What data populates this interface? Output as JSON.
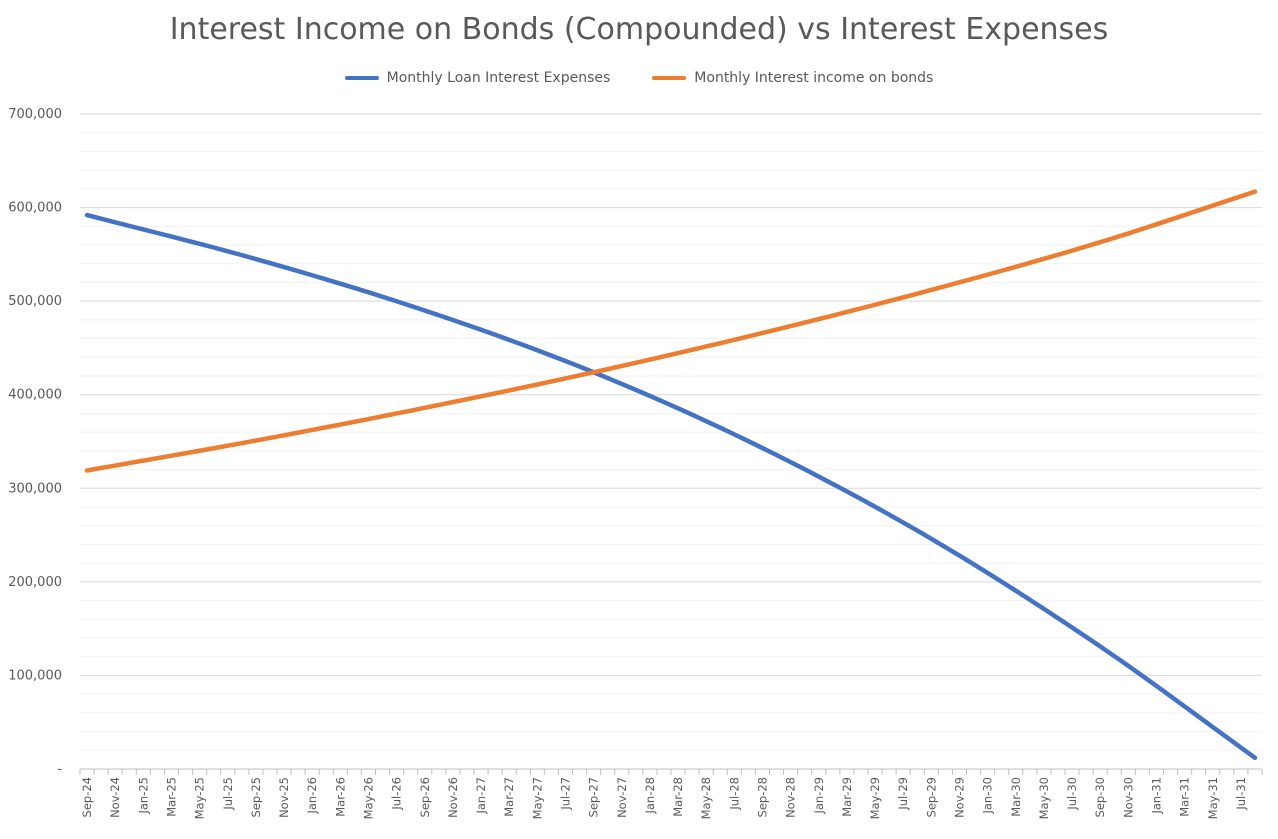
{
  "chart_data": {
    "type": "line",
    "title": "Interest Income on Bonds (Compounded) vs Interest Expenses",
    "xlabel": "",
    "ylabel": "",
    "legend_position": "top",
    "ylim": [
      0,
      700000
    ],
    "y_ticks": [
      0,
      100000,
      200000,
      300000,
      400000,
      500000,
      600000,
      700000
    ],
    "y_tick_labels": [
      "-",
      "100,000",
      "200,000",
      "300,000",
      "400,000",
      "500,000",
      "600,000",
      "700,000"
    ],
    "grid": true,
    "x_start": "2024-09",
    "x_count": 84,
    "x_tick_labels": [
      "Sep-24",
      "Nov-24",
      "Jan-25",
      "Mar-25",
      "May-25",
      "Jul-25",
      "Sep-25",
      "Nov-25",
      "Jan-26",
      "Mar-26",
      "May-26",
      "Jul-26",
      "Sep-26",
      "Nov-26",
      "Jan-27",
      "Mar-27",
      "May-27",
      "Jul-27",
      "Sep-27",
      "Nov-27",
      "Jan-28",
      "Mar-28",
      "May-28",
      "Jul-28",
      "Sep-28",
      "Nov-28",
      "Jan-29",
      "Mar-29",
      "May-29",
      "Jul-29",
      "Sep-29",
      "Nov-29",
      "Jan-30",
      "Mar-30",
      "May-30",
      "Jul-30",
      "Sep-30",
      "Nov-30",
      "Jan-31",
      "Mar-31",
      "May-31",
      "Jul-31"
    ],
    "series": [
      {
        "name": "Monthly Loan Interest Expenses",
        "color": "#4472C4",
        "points": [
          [
            "Sep-24",
            592000
          ],
          [
            "Sep-25",
            545000
          ],
          [
            "Sep-26",
            490000
          ],
          [
            "Sep-27",
            424000
          ],
          [
            "Sep-28",
            343000
          ],
          [
            "Sep-29",
            246000
          ],
          [
            "Sep-30",
            131000
          ],
          [
            "Aug-31",
            12000
          ]
        ]
      },
      {
        "name": "Monthly Interest income on bonds",
        "color": "#ED7D31",
        "points": [
          [
            "Sep-24",
            319000
          ],
          [
            "Sep-25",
            351000
          ],
          [
            "Sep-26",
            386000
          ],
          [
            "Sep-27",
            424000
          ],
          [
            "Sep-28",
            466000
          ],
          [
            "Sep-29",
            512000
          ],
          [
            "Sep-30",
            563000
          ],
          [
            "Aug-31",
            617000
          ]
        ]
      }
    ]
  }
}
